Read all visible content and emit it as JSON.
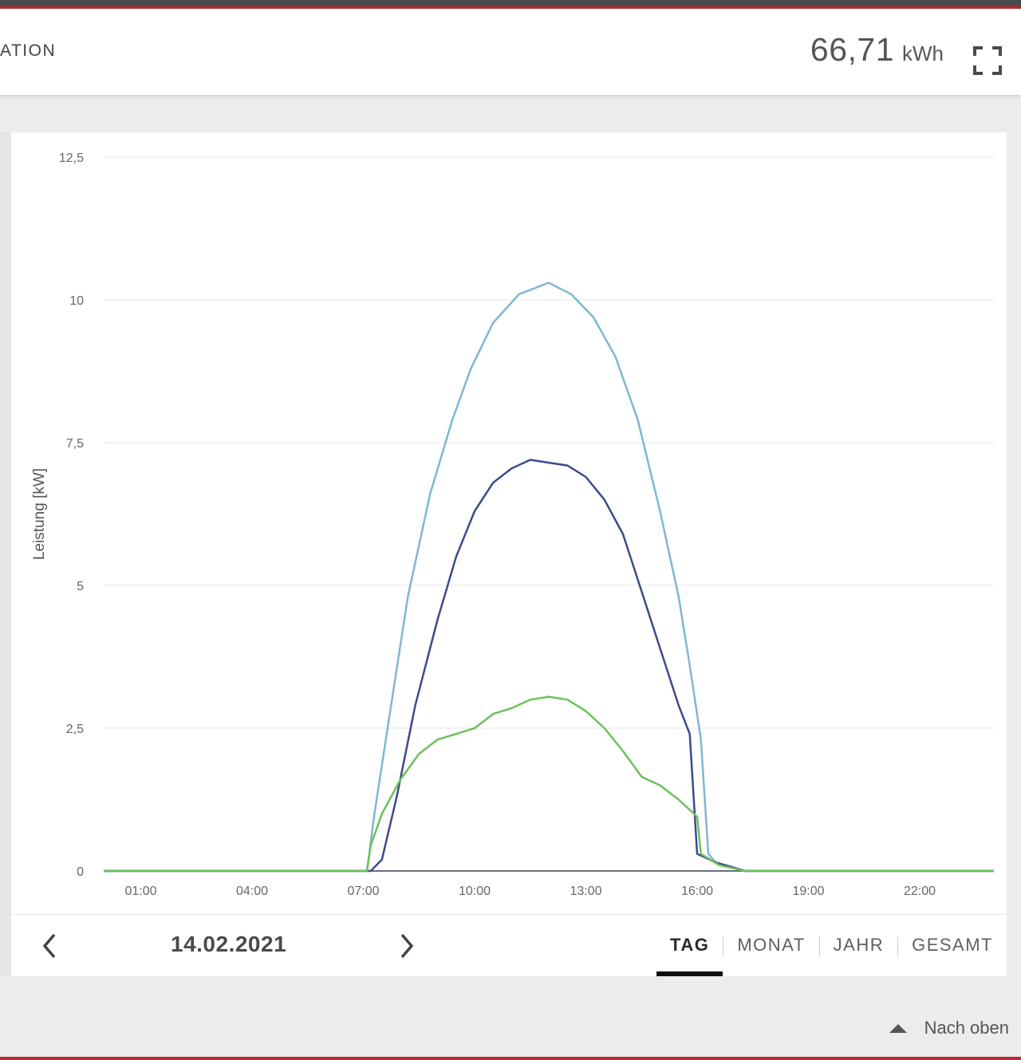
{
  "header": {
    "title": "ATION",
    "energy_value": "66,71",
    "energy_unit": "kWh",
    "fullscreen_icon": "fullscreen-icon"
  },
  "navigation": {
    "date": "14.02.2021",
    "prev_icon": "chevron-left-icon",
    "next_icon": "chevron-right-icon",
    "tabs": [
      {
        "label": "TAG",
        "active": true
      },
      {
        "label": "MONAT",
        "active": false
      },
      {
        "label": "JAHR",
        "active": false
      },
      {
        "label": "GESAMT",
        "active": false
      }
    ]
  },
  "footer": {
    "back_to_top": "Nach oben",
    "back_to_top_icon": "triangle-up-icon"
  },
  "colors": {
    "accent": "#c0272d",
    "series_light_blue": "#7fb7d2",
    "series_dark_blue": "#3c4a8c",
    "series_green": "#6cc15a",
    "grid": "#e6e6e6"
  },
  "chart_data": {
    "type": "line",
    "ylabel": "Leistung [kW]",
    "xlabel": "",
    "ylim": [
      0,
      12.5
    ],
    "y_ticks": [
      "0",
      "2,5",
      "5",
      "7,5",
      "10",
      "12,5"
    ],
    "y_tick_values": [
      0,
      2.5,
      5,
      7.5,
      10,
      12.5
    ],
    "x_range_hours": [
      0,
      24
    ],
    "x_ticks": [
      "01:00",
      "04:00",
      "07:00",
      "10:00",
      "13:00",
      "16:00",
      "19:00",
      "22:00"
    ],
    "x_tick_hours": [
      1,
      4,
      7,
      10,
      13,
      16,
      19,
      22
    ],
    "grid": true,
    "legend": "none",
    "series": [
      {
        "color": "#7fb7d2",
        "points": [
          [
            0,
            0
          ],
          [
            7.1,
            0
          ],
          [
            7.3,
            1.0
          ],
          [
            7.7,
            2.7
          ],
          [
            8.2,
            4.8
          ],
          [
            8.8,
            6.6
          ],
          [
            9.4,
            7.9
          ],
          [
            9.9,
            8.8
          ],
          [
            10.5,
            9.6
          ],
          [
            11.2,
            10.1
          ],
          [
            12.0,
            10.3
          ],
          [
            12.6,
            10.1
          ],
          [
            13.2,
            9.7
          ],
          [
            13.8,
            9.0
          ],
          [
            14.4,
            7.9
          ],
          [
            15.0,
            6.3
          ],
          [
            15.5,
            4.8
          ],
          [
            15.8,
            3.6
          ],
          [
            16.1,
            2.3
          ],
          [
            16.3,
            0.3
          ],
          [
            16.5,
            0.15
          ],
          [
            17.3,
            0
          ],
          [
            24,
            0
          ]
        ]
      },
      {
        "color": "#3c4a8c",
        "points": [
          [
            0,
            0
          ],
          [
            7.2,
            0
          ],
          [
            7.5,
            0.2
          ],
          [
            7.9,
            1.3
          ],
          [
            8.4,
            2.9
          ],
          [
            9.0,
            4.4
          ],
          [
            9.5,
            5.5
          ],
          [
            10.0,
            6.3
          ],
          [
            10.5,
            6.8
          ],
          [
            11.0,
            7.05
          ],
          [
            11.5,
            7.2
          ],
          [
            12.0,
            7.15
          ],
          [
            12.5,
            7.1
          ],
          [
            13.0,
            6.9
          ],
          [
            13.5,
            6.5
          ],
          [
            14.0,
            5.9
          ],
          [
            14.5,
            4.9
          ],
          [
            15.0,
            3.9
          ],
          [
            15.5,
            2.9
          ],
          [
            15.8,
            2.4
          ],
          [
            16.0,
            0.3
          ],
          [
            16.5,
            0.15
          ],
          [
            17.3,
            0
          ],
          [
            24,
            0
          ]
        ]
      },
      {
        "color": "#6cc15a",
        "points": [
          [
            0,
            0
          ],
          [
            7.1,
            0
          ],
          [
            7.2,
            0.45
          ],
          [
            7.5,
            1.0
          ],
          [
            8.0,
            1.6
          ],
          [
            8.5,
            2.05
          ],
          [
            9.0,
            2.3
          ],
          [
            9.5,
            2.4
          ],
          [
            10.0,
            2.5
          ],
          [
            10.5,
            2.75
          ],
          [
            11.0,
            2.85
          ],
          [
            11.5,
            3.0
          ],
          [
            12.0,
            3.05
          ],
          [
            12.5,
            3.0
          ],
          [
            13.0,
            2.8
          ],
          [
            13.5,
            2.5
          ],
          [
            14.0,
            2.1
          ],
          [
            14.5,
            1.65
          ],
          [
            15.0,
            1.5
          ],
          [
            15.5,
            1.25
          ],
          [
            16.0,
            0.95
          ],
          [
            16.1,
            0.3
          ],
          [
            16.6,
            0.1
          ],
          [
            17.3,
            0
          ],
          [
            24,
            0
          ]
        ]
      }
    ]
  }
}
